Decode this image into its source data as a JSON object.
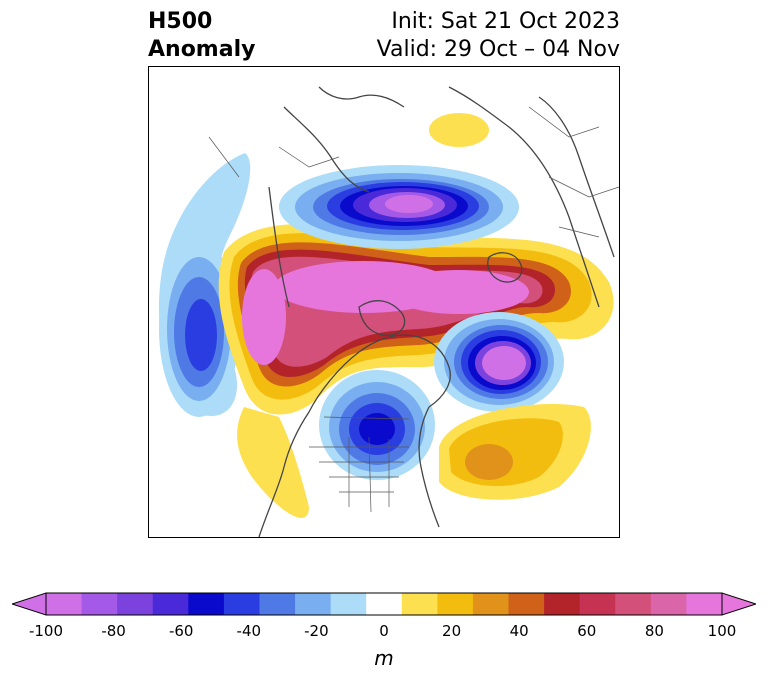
{
  "title": {
    "field": "H500",
    "kind": "Anomaly",
    "init": "Init: Sat 21 Oct 2023",
    "valid": "Valid: 29 Oct – 04 Nov"
  },
  "colorbar": {
    "unit": "m",
    "ticks": [
      "-100",
      "-80",
      "-60",
      "-40",
      "-20",
      "0",
      "20",
      "40",
      "60",
      "80",
      "100"
    ],
    "colors": [
      "#d070e6",
      "#a45ae6",
      "#7c42dd",
      "#4a2ad8",
      "#0a0acc",
      "#2a3de0",
      "#4f7ae6",
      "#79aef0",
      "#acdcf8",
      "#ffffff",
      "#fde04f",
      "#f3bd0f",
      "#e0921a",
      "#cf6118",
      "#b3242a",
      "#c63352",
      "#d3507a",
      "#da65a9",
      "#e676dc"
    ],
    "range": [
      -100,
      100
    ]
  },
  "map": {
    "projection": "north-polar-stereographic",
    "coast_color": "#444444"
  }
}
